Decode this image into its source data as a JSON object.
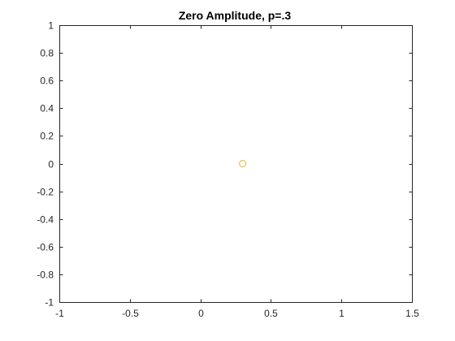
{
  "chart_data": {
    "type": "scatter",
    "title": "Zero Amplitude, p=.3",
    "xlabel": "",
    "ylabel": "",
    "xlim": [
      -1,
      1.5
    ],
    "ylim": [
      -1,
      1
    ],
    "x_ticks": [
      -1,
      -0.5,
      0,
      0.5,
      1,
      1.5
    ],
    "x_tick_labels": [
      "-1",
      "-0.5",
      "0",
      "0.5",
      "1",
      "1.5"
    ],
    "y_ticks": [
      -1,
      -0.8,
      -0.6,
      -0.4,
      -0.2,
      0,
      0.2,
      0.4,
      0.6,
      0.8,
      1
    ],
    "y_tick_labels": [
      "-1",
      "-0.8",
      "-0.6",
      "-0.4",
      "-0.2",
      "0",
      "0.2",
      "0.4",
      "0.6",
      "0.8",
      "1"
    ],
    "grid": false,
    "legend": "none",
    "series": [
      {
        "marker": "circle-open",
        "color": "#EDB120",
        "points": [
          {
            "x": 0.3,
            "y": 0
          }
        ]
      }
    ],
    "axis_color": "#262626"
  }
}
